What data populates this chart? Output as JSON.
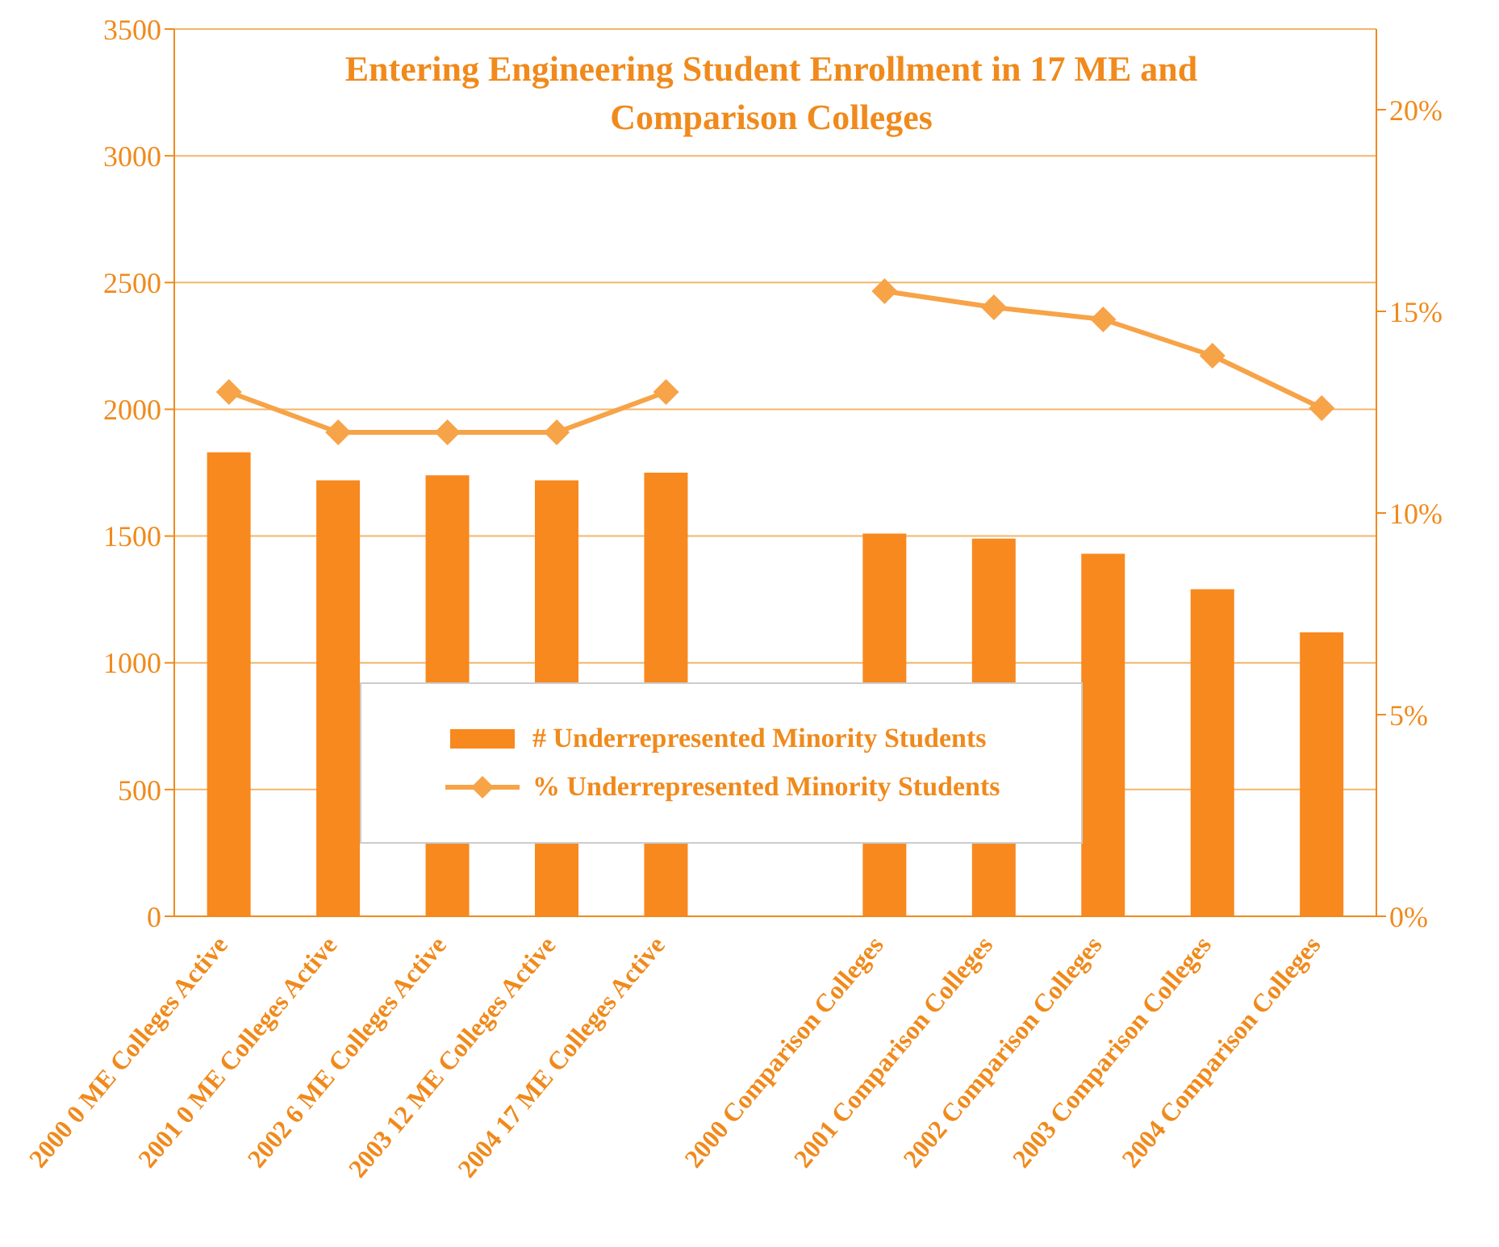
{
  "chart_data": {
    "type": "bar",
    "title": "Entering Engineering Student Enrollment in 17 ME and Comparison Colleges",
    "categories": [
      "2000 0 ME Colleges Active",
      "2001 0 ME Colleges Active",
      "2002 6 ME Colleges Active",
      "2003 12 ME Colleges Active",
      "2004 17 ME Colleges Active",
      null,
      "2000 Comparison Colleges",
      "2001 Comparison Colleges",
      "2002 Comparison Colleges",
      "2003 Comparison Colleges",
      "2004 Comparison Colleges"
    ],
    "series": [
      {
        "name": "# Underrepresented Minority Students",
        "color": "#f7891e",
        "values": [
          1830,
          1720,
          1740,
          1720,
          1750,
          null,
          1510,
          1490,
          1430,
          1290,
          1120
        ]
      },
      {
        "name": "% Underrepresented Minority Students",
        "type": "line",
        "axis": "y2",
        "color": "#f7a347",
        "values": [
          13,
          12,
          12,
          12,
          13,
          null,
          15.5,
          15.1,
          14.8,
          13.9,
          12.6
        ]
      }
    ],
    "ylim": [
      0,
      3500
    ],
    "yticks": [
      0,
      500,
      1000,
      1500,
      2000,
      2500,
      3000,
      3500
    ],
    "y2lim": [
      0,
      22
    ],
    "y2ticks": [
      {
        "value": 0,
        "label": "0%"
      },
      {
        "value": 5,
        "label": "5%"
      },
      {
        "value": 10,
        "label": "10%"
      },
      {
        "value": 15,
        "label": "15%"
      },
      {
        "value": 20,
        "label": "20%"
      }
    ],
    "grid": "y",
    "legend": "bottom",
    "marker": "diamond",
    "line_style": "solid"
  }
}
